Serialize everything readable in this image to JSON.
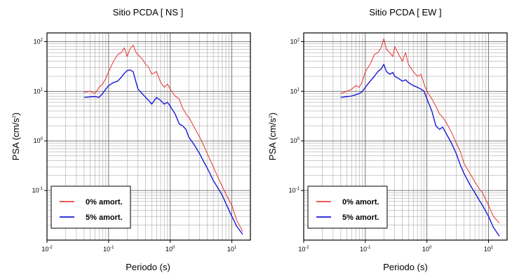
{
  "chart_data": [
    {
      "type": "line",
      "title": "Sitio PCDA [ NS ]",
      "xlabel": "Periodo (s)",
      "ylabel_main": "PSA (cm/s",
      "ylabel_sup": "2",
      "ylabel_close": ")",
      "xscale": "log",
      "yscale": "log",
      "xlim": [
        0.01,
        20
      ],
      "ylim": [
        0.01,
        150
      ],
      "grid": true,
      "legend_position": "bottom-left",
      "x_ticks": [
        {
          "base": "10",
          "exp": "-2",
          "value": 0.01
        },
        {
          "base": "10",
          "exp": "-1",
          "value": 0.1
        },
        {
          "base": "10",
          "exp": "0",
          "value": 1
        },
        {
          "base": "10",
          "exp": "1",
          "value": 10
        }
      ],
      "y_ticks": [
        {
          "base": "10",
          "exp": "-1",
          "value": 0.1
        },
        {
          "base": "10",
          "exp": "0",
          "value": 1
        },
        {
          "base": "10",
          "exp": "1",
          "value": 10
        },
        {
          "base": "10",
          "exp": "2",
          "value": 100
        }
      ],
      "series": [
        {
          "name": "0% amort.",
          "color": "#e8201a",
          "x": [
            0.04,
            0.05,
            0.06,
            0.07,
            0.08,
            0.09,
            0.1,
            0.12,
            0.14,
            0.16,
            0.18,
            0.2,
            0.22,
            0.25,
            0.28,
            0.3,
            0.35,
            0.4,
            0.45,
            0.5,
            0.6,
            0.7,
            0.8,
            0.9,
            1.0,
            1.2,
            1.4,
            1.6,
            1.8,
            2.0,
            2.5,
            3.0,
            3.5,
            4.0,
            5.0,
            6.0,
            7.0,
            8.0,
            10.0,
            12.0,
            15.0
          ],
          "y": [
            9.5,
            10.0,
            9.0,
            12.0,
            14.0,
            18.0,
            25.0,
            40.0,
            55.0,
            60.0,
            75.0,
            50.0,
            70.0,
            85.0,
            60.0,
            55.0,
            45.0,
            35.0,
            30.0,
            22.0,
            25.0,
            15.0,
            12.0,
            14.0,
            11.0,
            8.0,
            7.0,
            4.5,
            3.5,
            3.0,
            1.8,
            1.2,
            0.8,
            0.55,
            0.3,
            0.18,
            0.12,
            0.085,
            0.05,
            0.025,
            0.015
          ]
        },
        {
          "name": "5% amort.",
          "color": "#1a1ad8",
          "x": [
            0.04,
            0.05,
            0.06,
            0.07,
            0.08,
            0.09,
            0.1,
            0.12,
            0.14,
            0.16,
            0.18,
            0.2,
            0.22,
            0.25,
            0.28,
            0.3,
            0.35,
            0.4,
            0.45,
            0.5,
            0.6,
            0.7,
            0.8,
            0.9,
            1.0,
            1.2,
            1.4,
            1.6,
            1.8,
            2.0,
            2.5,
            3.0,
            3.5,
            4.0,
            5.0,
            6.0,
            7.0,
            8.0,
            10.0,
            12.0,
            15.0
          ],
          "y": [
            7.5,
            7.7,
            7.8,
            7.5,
            9.0,
            11.0,
            13.0,
            15.0,
            16.0,
            19.0,
            23.0,
            26.0,
            27.0,
            25.0,
            15.0,
            11.0,
            9.0,
            7.5,
            6.5,
            5.5,
            7.5,
            6.5,
            5.5,
            6.0,
            5.0,
            3.5,
            2.2,
            2.0,
            1.7,
            1.2,
            0.8,
            0.55,
            0.38,
            0.28,
            0.16,
            0.11,
            0.08,
            0.055,
            0.03,
            0.019,
            0.013
          ]
        }
      ]
    },
    {
      "type": "line",
      "title": "Sitio PCDA [ EW ]",
      "xlabel": "Periodo (s)",
      "ylabel_main": "PSA (cm/s",
      "ylabel_sup": "2",
      "ylabel_close": ")",
      "xscale": "log",
      "yscale": "log",
      "xlim": [
        0.01,
        20
      ],
      "ylim": [
        0.01,
        150
      ],
      "grid": true,
      "legend_position": "bottom-left",
      "x_ticks": [
        {
          "base": "10",
          "exp": "-2",
          "value": 0.01
        },
        {
          "base": "10",
          "exp": "-1",
          "value": 0.1
        },
        {
          "base": "10",
          "exp": "0",
          "value": 1
        },
        {
          "base": "10",
          "exp": "1",
          "value": 10
        }
      ],
      "y_ticks": [
        {
          "base": "10",
          "exp": "-1",
          "value": 0.1
        },
        {
          "base": "10",
          "exp": "0",
          "value": 1
        },
        {
          "base": "10",
          "exp": "1",
          "value": 10
        },
        {
          "base": "10",
          "exp": "2",
          "value": 100
        }
      ],
      "series": [
        {
          "name": "0% amort.",
          "color": "#e8201a",
          "x": [
            0.04,
            0.05,
            0.06,
            0.07,
            0.08,
            0.09,
            0.1,
            0.12,
            0.14,
            0.16,
            0.18,
            0.2,
            0.22,
            0.25,
            0.28,
            0.3,
            0.35,
            0.4,
            0.45,
            0.5,
            0.6,
            0.7,
            0.8,
            0.9,
            1.0,
            1.2,
            1.4,
            1.6,
            1.8,
            2.0,
            2.5,
            3.0,
            3.5,
            4.0,
            5.0,
            6.0,
            7.0,
            8.0,
            10.0,
            12.0,
            15.0
          ],
          "y": [
            9.0,
            10.0,
            11.0,
            13.0,
            12.0,
            16.0,
            25.0,
            35.0,
            55.0,
            60.0,
            75.0,
            115.0,
            70.0,
            60.0,
            50.0,
            80.0,
            55.0,
            40.0,
            60.0,
            35.0,
            25.0,
            20.0,
            22.0,
            14.0,
            10.0,
            7.0,
            5.0,
            3.5,
            3.0,
            2.5,
            1.5,
            0.9,
            0.6,
            0.35,
            0.22,
            0.15,
            0.11,
            0.09,
            0.05,
            0.03,
            0.022
          ]
        },
        {
          "name": "5% amort.",
          "color": "#1a1ad8",
          "x": [
            0.04,
            0.05,
            0.06,
            0.07,
            0.08,
            0.09,
            0.1,
            0.12,
            0.14,
            0.16,
            0.18,
            0.2,
            0.22,
            0.25,
            0.28,
            0.3,
            0.35,
            0.4,
            0.45,
            0.5,
            0.6,
            0.7,
            0.8,
            0.9,
            1.0,
            1.2,
            1.4,
            1.6,
            1.8,
            2.0,
            2.5,
            3.0,
            3.5,
            4.0,
            5.0,
            6.0,
            7.0,
            8.0,
            10.0,
            12.0,
            15.0
          ],
          "y": [
            7.5,
            7.8,
            8.0,
            8.5,
            9.0,
            10.0,
            12.0,
            16.0,
            20.0,
            25.0,
            28.0,
            35.0,
            25.0,
            22.0,
            24.0,
            20.0,
            18.0,
            16.0,
            17.0,
            15.0,
            13.0,
            12.0,
            11.0,
            10.0,
            7.0,
            4.0,
            2.0,
            1.7,
            1.9,
            1.5,
            0.9,
            0.55,
            0.32,
            0.22,
            0.13,
            0.09,
            0.065,
            0.05,
            0.03,
            0.018,
            0.012
          ]
        }
      ]
    }
  ]
}
